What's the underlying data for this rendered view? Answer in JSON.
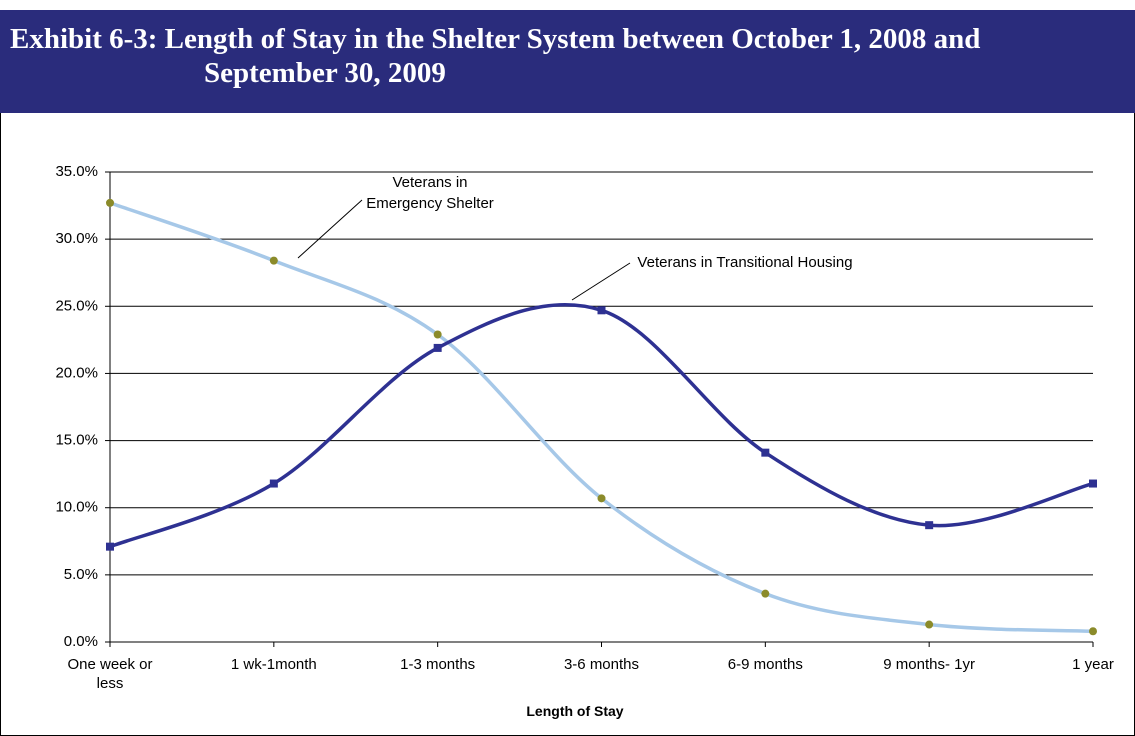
{
  "chart_data": {
    "type": "line",
    "title": "Exhibit 6-3: Length of Stay in the Shelter System between October 1, 2008 and September 30, 2009",
    "x_label": "Length of Stay",
    "categories": [
      "One week or less",
      "1 wk-1month",
      "1-3 months",
      "3-6 months",
      "6-9 months",
      "9 months- 1yr",
      "1 year"
    ],
    "series": [
      {
        "name": "Veterans in Emergency Shelter",
        "color": "#a6c8e8",
        "marker_color": "#8b8b2a",
        "marker": "circle",
        "values": [
          32.7,
          28.4,
          22.9,
          10.7,
          3.6,
          1.3,
          0.8
        ]
      },
      {
        "name": "Veterans in Transitional Housing",
        "color": "#2e3192",
        "marker_color": "#2e3192",
        "marker": "square",
        "values": [
          7.1,
          11.8,
          21.9,
          24.7,
          14.1,
          8.7,
          11.8
        ]
      }
    ],
    "ylim": [
      0,
      35
    ],
    "yticks": [
      {
        "value": 0,
        "label": "0.0%"
      },
      {
        "value": 5,
        "label": "5.0%"
      },
      {
        "value": 10,
        "label": "10.0%"
      },
      {
        "value": 15,
        "label": "15.0%"
      },
      {
        "value": 20,
        "label": "20.0%"
      },
      {
        "value": 25,
        "label": "25.0%"
      },
      {
        "value": 30,
        "label": "30.0%"
      },
      {
        "value": 35,
        "label": "35.0%"
      }
    ],
    "grid": true
  }
}
